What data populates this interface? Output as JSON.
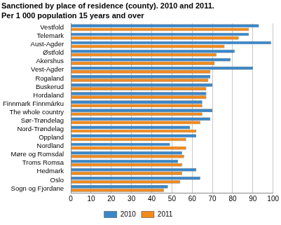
{
  "chart_data": {
    "type": "bar",
    "title": "Sanctioned by place of residence (county). 2010 and 2011.",
    "subtitle": "Per 1 000 population 15 years and over",
    "orientation": "horizontal",
    "categories": [
      "Vestfold",
      "Telemark",
      "Aust-Agder",
      "Østfold",
      "Akershus",
      "Vest-Agder",
      "Rogaland",
      "Buskerud",
      "Hordaland",
      "Finnmark Finnmárku",
      "The whole country",
      "Sør-Trøndelag",
      "Nord-Trøndelag",
      "Oppland",
      "Nordland",
      "Møre og Romsdal",
      "Troms Romsa",
      "Hedmark",
      "Oslo",
      "Sogn og Fjordane"
    ],
    "series": [
      {
        "name": "2010",
        "color": "#3a87c8",
        "values": [
          93,
          88,
          99,
          81,
          79,
          90,
          69,
          70,
          67,
          65,
          70,
          69,
          59,
          62,
          49,
          55,
          53,
          62,
          64,
          48
        ]
      },
      {
        "name": "2011",
        "color": "#f28a1c",
        "values": [
          88,
          83,
          76,
          72,
          71,
          69,
          68,
          67,
          67,
          65,
          65,
          64,
          62,
          57,
          57,
          56,
          55,
          55,
          54,
          46
        ]
      }
    ],
    "xlim": [
      0,
      100
    ],
    "xticks": [
      0,
      10,
      20,
      30,
      40,
      50,
      60,
      70,
      80,
      90,
      100
    ],
    "grid": true,
    "legend": "bottom"
  }
}
